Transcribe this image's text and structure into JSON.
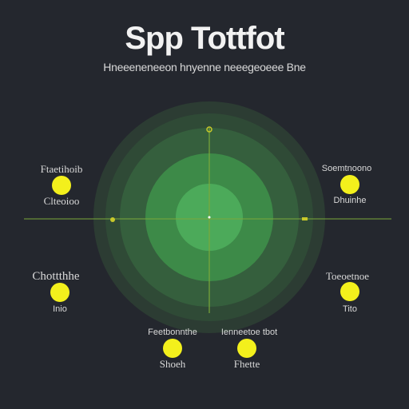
{
  "title": "Spp Tottfot",
  "subtitle": "Hneeeneneeon hnyenne neeegeoeee Bne",
  "colors": {
    "background": "#24272e",
    "ring_outer": "#2f4a36",
    "ring_mid": "#3b7a46",
    "ring_inner": "#4caa5a",
    "node": "#f3f01c",
    "axis": "#8bb83a"
  },
  "nodes": [
    {
      "id": "top-left",
      "title": "Ftaetihoib",
      "caption": "Clteoioo"
    },
    {
      "id": "top-right",
      "title": "Soemtnoono",
      "caption": "Dhuinhe"
    },
    {
      "id": "mid-left",
      "title": "Chottthhe",
      "caption": "Inio"
    },
    {
      "id": "mid-right",
      "title": "Toeoetnoe",
      "caption": "Tito"
    },
    {
      "id": "bottom-left",
      "title": "Feetbonnthe",
      "caption": "Shoeh"
    },
    {
      "id": "bottom-right",
      "title": "Ienneetoe tbot",
      "caption": "Fhette"
    }
  ]
}
